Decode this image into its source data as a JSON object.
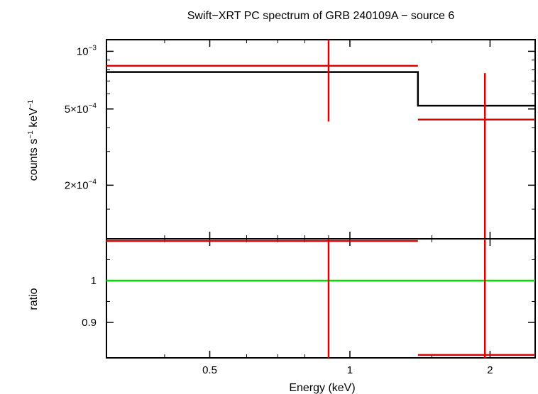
{
  "chart_data": [
    {
      "type": "line",
      "title": "Swift−XRT PC spectrum of GRB 240109A − source 6",
      "ylabel_main": "counts s",
      "ylabel_sup1": "−1",
      "ylabel_mid": " keV",
      "ylabel_sup2": "−1",
      "x_scale": "log",
      "y_scale": "log",
      "xlim": [
        0.3,
        2.5
      ],
      "ylim": [
        0.000105,
        0.00115
      ],
      "yticks": [
        {
          "value": 0.001,
          "base": "10",
          "exp": "−3"
        },
        {
          "value": 0.0005,
          "base": "5×10",
          "exp": "−4"
        },
        {
          "value": 0.0002,
          "base": "2×10",
          "exp": "−4"
        }
      ],
      "data_points": [
        {
          "x": 0.9,
          "xlo": 0.3,
          "xhi": 1.4,
          "y": 0.00084,
          "ylo": 0.00043,
          "yhi": 0.00124,
          "color": "#e00000"
        },
        {
          "x": 1.95,
          "xlo": 1.4,
          "xhi": 2.5,
          "y": 0.00044,
          "ylo": 0.000105,
          "yhi": 0.00077,
          "color": "#e00000"
        }
      ],
      "model": {
        "segments": [
          {
            "xlo": 0.3,
            "xhi": 1.4,
            "y": 0.00078
          },
          {
            "xlo": 1.4,
            "xhi": 2.5,
            "y": 0.00052
          }
        ],
        "color": "#000000"
      }
    },
    {
      "type": "line",
      "ylabel": "ratio",
      "xlabel": "Energy (keV)",
      "x_scale": "log",
      "xlim": [
        0.3,
        2.5
      ],
      "ylim": [
        0.815,
        1.1
      ],
      "xticks": [
        {
          "value": 0.5,
          "label": "0.5"
        },
        {
          "value": 1,
          "label": "1"
        },
        {
          "value": 2,
          "label": "2"
        }
      ],
      "yticks": [
        {
          "value": 1,
          "label": "1"
        },
        {
          "value": 0.9,
          "label": "0.9"
        }
      ],
      "data_points": [
        {
          "x": 0.9,
          "xlo": 0.3,
          "xhi": 1.4,
          "y": 1.095,
          "ylo": 0.815,
          "yhi": 1.1,
          "color": "#e00000"
        },
        {
          "x": 1.95,
          "xlo": 1.4,
          "xhi": 2.5,
          "y": 0.822,
          "ylo": 0.815,
          "yhi": 1.1,
          "color": "#e00000"
        }
      ],
      "reference_line": {
        "y": 1,
        "color": "#00e000"
      }
    }
  ]
}
